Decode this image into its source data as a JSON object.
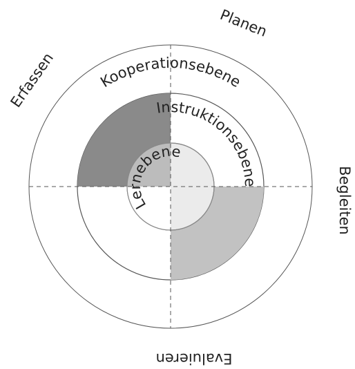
{
  "diagram": {
    "rings": [
      "Kooperationsebene",
      "Instruktionsebene",
      "Lernebene"
    ],
    "phases": [
      "Planen",
      "Begleiten",
      "Evaluieren",
      "Erfassen"
    ]
  }
}
